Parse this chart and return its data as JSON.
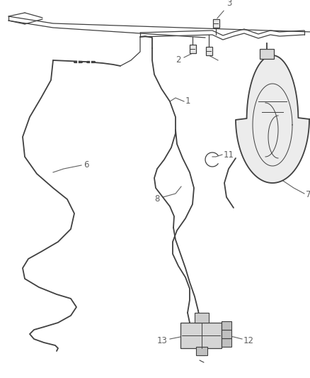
{
  "bg_color": "#ffffff",
  "line_color": "#404040",
  "label_color": "#606060",
  "lw_main": 1.3,
  "lw_thin": 0.9,
  "fig_width": 4.38,
  "fig_height": 5.33,
  "dpi": 100
}
